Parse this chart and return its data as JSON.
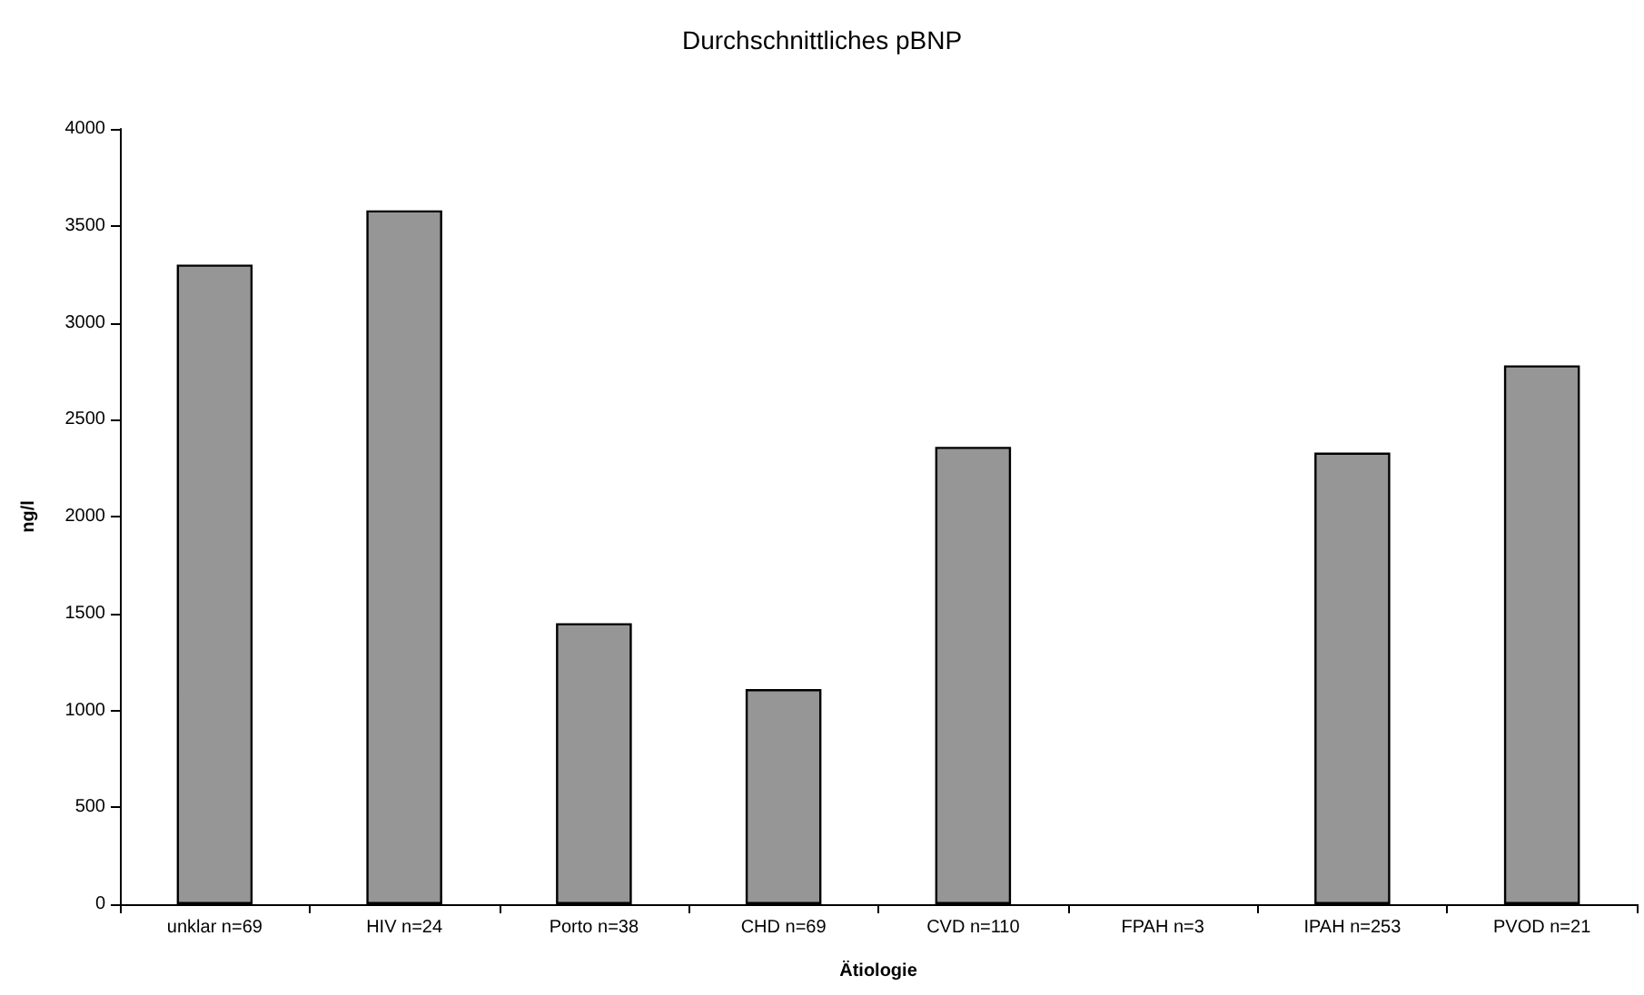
{
  "chart_data": {
    "type": "bar",
    "title": "Durchschnittliches pBNP",
    "xlabel": "Ätiologie",
    "ylabel": "ng/l",
    "categories": [
      "unklar n=69",
      "HIV n=24",
      "Porto n=38",
      "CHD n=69",
      "CVD n=110",
      "FPAH n=3",
      "IPAH n=253",
      "PVOD n=21"
    ],
    "values": [
      3300,
      3580,
      1450,
      1110,
      2360,
      null,
      2330,
      2780
    ],
    "color": "#969696",
    "ylim": [
      0,
      4000
    ],
    "yticks": [
      0,
      500,
      1000,
      1500,
      2000,
      2500,
      3000,
      3500,
      4000
    ],
    "grid": false
  }
}
